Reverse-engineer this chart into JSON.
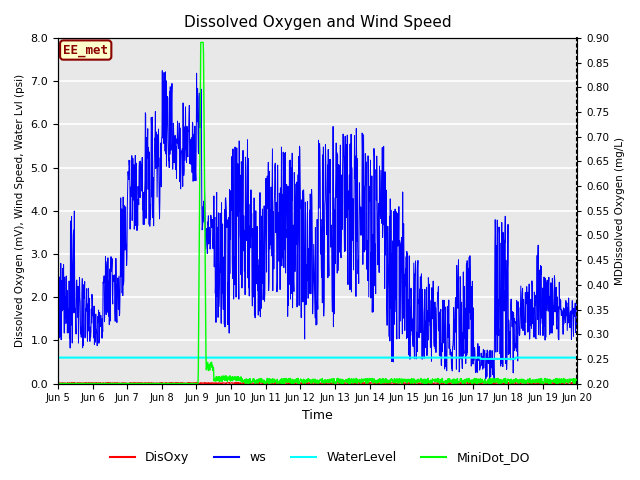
{
  "title": "Dissolved Oxygen and Wind Speed",
  "ylabel_left": "Dissolved Oxygen (mV), Wind Speed, Water Lvl (psi)",
  "ylabel_right": "MDDissolved Oxygen (mg/L)",
  "xlabel": "Time",
  "xlim_days": [
    5,
    20
  ],
  "ylim_left": [
    0,
    8.0
  ],
  "ylim_right": [
    0.2,
    0.9
  ],
  "xtick_labels": [
    "Jun 5",
    "Jun 6",
    "Jun 7",
    "Jun 8",
    "Jun 9",
    "Jun 10",
    "Jun 11",
    "Jun 12",
    "Jun 13",
    "Jun 14",
    "Jun 15",
    "Jun 16",
    "Jun 17",
    "Jun 18",
    "Jun 19",
    "Jun 20"
  ],
  "yticks_left": [
    0.0,
    1.0,
    2.0,
    3.0,
    4.0,
    5.0,
    6.0,
    7.0,
    8.0
  ],
  "yticks_right": [
    0.2,
    0.25,
    0.3,
    0.35,
    0.4,
    0.45,
    0.5,
    0.55,
    0.6,
    0.65,
    0.7,
    0.75,
    0.8,
    0.85,
    0.9
  ],
  "legend_entries": [
    "DisOxy",
    "ws",
    "WaterLevel",
    "MiniDot_DO"
  ],
  "legend_colors": [
    "red",
    "blue",
    "cyan",
    "lime"
  ],
  "annotation_text": "EE_met",
  "annotation_color": "darkred",
  "annotation_bg": "#ffffcc",
  "bg_color": "#e8e8e8",
  "grid_color": "white",
  "ws_color": "blue",
  "disoxy_color": "red",
  "water_level_color": "cyan",
  "minidot_color": "lime",
  "water_level_value": 0.6
}
